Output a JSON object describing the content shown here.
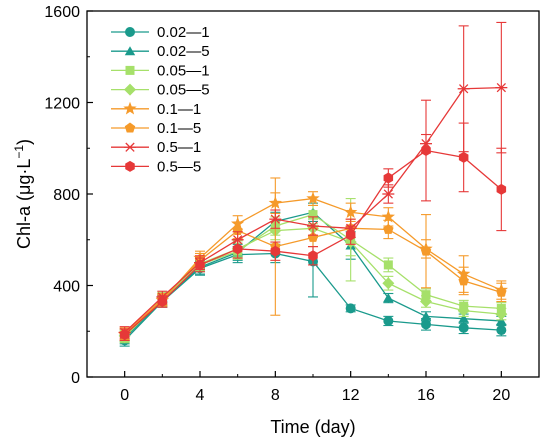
{
  "chart_data": {
    "type": "line",
    "xlabel": "Time (day)",
    "ylabel_main": "Chl-a (μg·L",
    "ylabel_sup": "−1",
    "ylabel_end": ")",
    "xlim": [
      -2,
      22
    ],
    "ylim": [
      0,
      1600
    ],
    "xticks": [
      "0",
      "4",
      "8",
      "12",
      "16",
      "20"
    ],
    "yticks": [
      "0",
      "400",
      "800",
      "1200",
      "1600"
    ],
    "grid": false,
    "legend_position": "top-left",
    "x": [
      0,
      2,
      4,
      6,
      8,
      10,
      12,
      14,
      16,
      18,
      20
    ],
    "series": [
      {
        "name": "0.02—1",
        "color": "#1a9a8c",
        "marker": "circle",
        "values": [
          160,
          330,
          475,
          535,
          540,
          505,
          300,
          245,
          230,
          215,
          205
        ],
        "errors": [
          25,
          25,
          30,
          35,
          40,
          155,
          15,
          20,
          25,
          25,
          25
        ]
      },
      {
        "name": "0.02—5",
        "color": "#1a9a8c",
        "marker": "triangle",
        "values": [
          170,
          335,
          480,
          545,
          680,
          720,
          575,
          345,
          265,
          255,
          245
        ],
        "errors": [
          25,
          25,
          30,
          35,
          40,
          40,
          60,
          20,
          20,
          20,
          20
        ]
      },
      {
        "name": "0.05—1",
        "color": "#a6e06a",
        "marker": "square",
        "values": [
          175,
          340,
          490,
          550,
          660,
          710,
          600,
          490,
          360,
          310,
          300
        ],
        "errors": [
          25,
          25,
          30,
          35,
          40,
          40,
          180,
          30,
          25,
          25,
          25
        ]
      },
      {
        "name": "0.05—5",
        "color": "#a6e06a",
        "marker": "diamond",
        "values": [
          180,
          345,
          495,
          560,
          640,
          650,
          590,
          410,
          330,
          290,
          275
        ],
        "errors": [
          25,
          25,
          30,
          35,
          40,
          40,
          60,
          30,
          25,
          25,
          25
        ]
      },
      {
        "name": "0.1—1",
        "color": "#f59a2a",
        "marker": "star",
        "values": [
          185,
          335,
          520,
          670,
          760,
          780,
          720,
          700,
          560,
          450,
          380
        ],
        "errors": [
          25,
          25,
          30,
          35,
          45,
          30,
          40,
          40,
          40,
          80,
          40
        ]
      },
      {
        "name": "0.1—5",
        "color": "#f59a2a",
        "marker": "pentagon",
        "values": [
          190,
          340,
          510,
          640,
          570,
          610,
          650,
          645,
          550,
          420,
          370
        ],
        "errors": [
          25,
          25,
          30,
          35,
          300,
          40,
          40,
          40,
          160,
          60,
          40
        ]
      },
      {
        "name": "0.5—1",
        "color": "#e63838",
        "marker": "asterisk",
        "values": [
          195,
          350,
          500,
          600,
          690,
          660,
          650,
          800,
          1020,
          1260,
          1265
        ],
        "errors": [
          25,
          25,
          30,
          35,
          40,
          40,
          40,
          40,
          40,
          275,
          285
        ]
      },
      {
        "name": "0.5—5",
        "color": "#e63838",
        "marker": "hexagon",
        "values": [
          185,
          330,
          490,
          560,
          550,
          530,
          620,
          870,
          990,
          960,
          820
        ],
        "errors": [
          25,
          25,
          30,
          40,
          40,
          40,
          40,
          40,
          220,
          150,
          180
        ]
      }
    ]
  }
}
